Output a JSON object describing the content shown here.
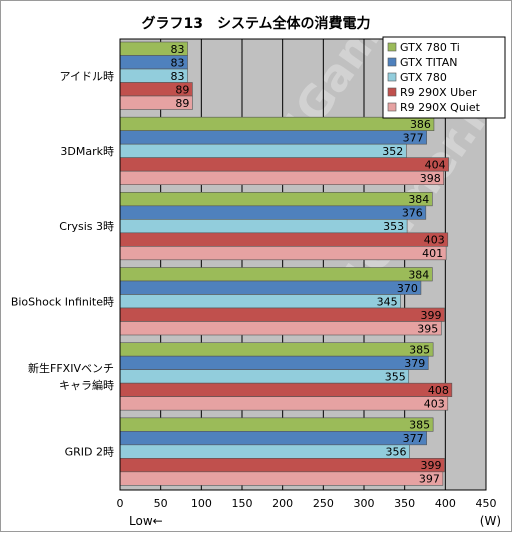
{
  "chart_data": {
    "type": "bar",
    "orientation": "horizontal",
    "title": "グラフ13　システム全体の消費電力",
    "categories": [
      "アイドル時",
      "3DMark時",
      "Crysis 3時",
      "BioShock Infinite時",
      "新生FFXIVベンチキャラ編時",
      "GRID 2時"
    ],
    "category_lines": [
      [
        "アイドル時"
      ],
      [
        "3DMark時"
      ],
      [
        "Crysis 3時"
      ],
      [
        "BioShock Infinite時"
      ],
      [
        "新生FFXIVベンチ",
        "キャラ編時"
      ],
      [
        "GRID 2時"
      ]
    ],
    "series": [
      {
        "name": "GTX 780 Ti",
        "color": "#9bbb59",
        "values": [
          83,
          386,
          384,
          384,
          385,
          385
        ]
      },
      {
        "name": "GTX TITAN",
        "color": "#4f81bd",
        "values": [
          83,
          377,
          376,
          370,
          379,
          377
        ]
      },
      {
        "name": "GTX 780",
        "color": "#92cddc",
        "values": [
          83,
          352,
          353,
          345,
          355,
          356
        ]
      },
      {
        "name": "R9 290X Uber",
        "color": "#c0504d",
        "values": [
          89,
          404,
          403,
          399,
          408,
          399
        ]
      },
      {
        "name": "R9 290X Quiet",
        "color": "#e6a2a2",
        "values": [
          89,
          398,
          401,
          395,
          403,
          397
        ]
      }
    ],
    "xlim": [
      0,
      450
    ],
    "xticks": [
      0,
      50,
      100,
      150,
      200,
      250,
      300,
      350,
      400,
      450
    ],
    "xlabel_left": "Low←",
    "unit": "(W)",
    "grid": true,
    "legend_position": "top-right",
    "plot_background": "#c0c0c0"
  }
}
